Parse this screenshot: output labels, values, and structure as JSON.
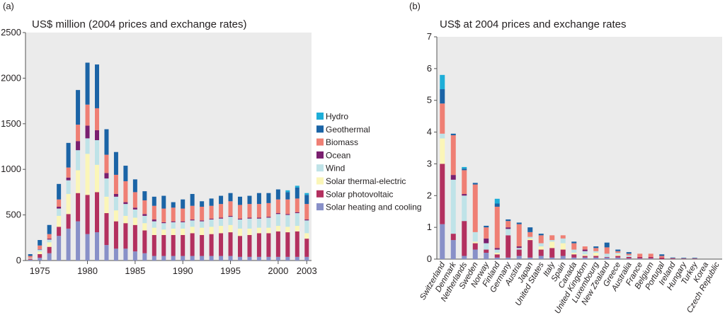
{
  "colors": {
    "hydro": "#1eaed8",
    "geothermal": "#1b64a6",
    "biomass": "#ef7f74",
    "ocean": "#7a1f6f",
    "wind": "#bfe3e8",
    "solar_thermal": "#fbf6b8",
    "solar_pv": "#b3305f",
    "solar_heating": "#8890c8",
    "plot_bg": "#ebebeb",
    "axis": "#555555"
  },
  "chart_data": [
    {
      "type": "bar",
      "stacked": true,
      "panel_label": "(a)",
      "title": "US$ million (2004 prices and exchange rates)",
      "xlabel": "",
      "ylabel": "",
      "ylim": [
        0,
        2500
      ],
      "yticks": [
        0,
        500,
        1000,
        1500,
        2000,
        2500
      ],
      "x_tick_labels": [
        "1975",
        "1980",
        "1985",
        "1990",
        "1995",
        "2000",
        "2003"
      ],
      "x_tick_positions": [
        1975,
        1980,
        1985,
        1990,
        1995,
        2000,
        2003
      ],
      "legend_position": "right",
      "categories": [
        1974,
        1975,
        1976,
        1977,
        1978,
        1979,
        1980,
        1981,
        1982,
        1983,
        1984,
        1985,
        1986,
        1987,
        1988,
        1989,
        1990,
        1991,
        1992,
        1993,
        1994,
        1995,
        1996,
        1997,
        1998,
        1999,
        2000,
        2001,
        2002,
        2003
      ],
      "series": [
        {
          "name": "Solar heating and cooling",
          "key": "solar_heating",
          "values": [
            10,
            30,
            80,
            270,
            350,
            430,
            290,
            310,
            170,
            130,
            130,
            100,
            80,
            50,
            50,
            50,
            50,
            50,
            50,
            50,
            50,
            50,
            40,
            40,
            40,
            40,
            40,
            40,
            40,
            40
          ]
        },
        {
          "name": "Solar photovoltaic",
          "key": "solar_pv",
          "values": [
            10,
            40,
            70,
            100,
            160,
            310,
            430,
            440,
            350,
            300,
            280,
            290,
            250,
            230,
            230,
            230,
            230,
            250,
            230,
            240,
            250,
            260,
            230,
            240,
            260,
            260,
            280,
            270,
            280,
            200
          ]
        },
        {
          "name": "Solar thermal-electric",
          "key": "solar_thermal",
          "values": [
            5,
            30,
            50,
            120,
            220,
            250,
            450,
            300,
            180,
            120,
            80,
            80,
            80,
            80,
            60,
            70,
            70,
            70,
            80,
            80,
            80,
            80,
            80,
            70,
            60,
            60,
            60,
            60,
            60,
            60
          ]
        },
        {
          "name": "Wind",
          "key": "wind",
          "values": [
            5,
            20,
            30,
            80,
            150,
            220,
            170,
            270,
            200,
            150,
            130,
            90,
            80,
            70,
            70,
            70,
            70,
            70,
            70,
            80,
            80,
            90,
            100,
            110,
            100,
            110,
            130,
            130,
            140,
            140
          ]
        },
        {
          "name": "Ocean",
          "key": "ocean",
          "values": [
            0,
            5,
            10,
            20,
            30,
            100,
            140,
            110,
            60,
            30,
            20,
            20,
            20,
            20,
            10,
            10,
            10,
            10,
            10,
            10,
            10,
            10,
            10,
            10,
            10,
            10,
            10,
            10,
            10,
            10
          ]
        },
        {
          "name": "Biomass",
          "key": "biomass",
          "values": [
            20,
            40,
            50,
            80,
            110,
            180,
            230,
            240,
            200,
            210,
            230,
            170,
            150,
            150,
            150,
            150,
            140,
            150,
            150,
            140,
            150,
            160,
            150,
            150,
            150,
            150,
            150,
            160,
            150,
            170
          ]
        },
        {
          "name": "Geothermal",
          "key": "geothermal",
          "values": [
            20,
            60,
            100,
            170,
            270,
            380,
            460,
            480,
            280,
            250,
            170,
            140,
            100,
            100,
            140,
            60,
            100,
            130,
            60,
            80,
            90,
            90,
            90,
            90,
            120,
            110,
            110,
            80,
            120,
            100
          ]
        },
        {
          "name": "Hydro",
          "key": "hydro",
          "values": [
            0,
            0,
            0,
            0,
            0,
            0,
            0,
            0,
            0,
            0,
            0,
            0,
            0,
            0,
            0,
            0,
            0,
            0,
            0,
            0,
            0,
            0,
            0,
            0,
            0,
            0,
            0,
            20,
            20,
            20
          ]
        }
      ]
    },
    {
      "type": "bar",
      "stacked": true,
      "panel_label": "(b)",
      "title": "US$ at 2004 prices and exchange rates",
      "xlabel": "",
      "ylabel": "",
      "ylim": [
        0,
        7
      ],
      "yticks": [
        0,
        1,
        2,
        3,
        4,
        5,
        6,
        7
      ],
      "categories": [
        "Switzerland",
        "Denmark",
        "Netherlands",
        "Sweden",
        "Norway",
        "Finland",
        "Germany",
        "Austria",
        "Japan",
        "United States",
        "Italy",
        "Spain",
        "Canada",
        "United Kingdom",
        "Luxembourg",
        "New Zealand",
        "Greece",
        "Australia",
        "France",
        "Belgium",
        "Portugal",
        "Ireland",
        "Hungary",
        "Turkey",
        "Korea",
        "Czech Republic"
      ],
      "series": [
        {
          "name": "Solar heating and cooling",
          "key": "solar_heating",
          "values": [
            1.1,
            0.6,
            0.1,
            0.3,
            0.2,
            0.05,
            0.05,
            0.1,
            0.05,
            0.1,
            0.05,
            0.1,
            0.05,
            0.05,
            0.05,
            0.05,
            0.05,
            0.02,
            0.02,
            0.02,
            0.0,
            0.0,
            0.0,
            0.0,
            0.0,
            0.0
          ]
        },
        {
          "name": "Solar photovoltaic",
          "key": "solar_pv",
          "values": [
            1.9,
            0.2,
            1.1,
            0.2,
            0.1,
            0.1,
            0.7,
            0.2,
            0.55,
            0.2,
            0.3,
            0.2,
            0.1,
            0.05,
            0.05,
            0.02,
            0.05,
            0.05,
            0.05,
            0.05,
            0.05,
            0.02,
            0.01,
            0.01,
            0.0,
            0.0
          ]
        },
        {
          "name": "Solar thermal-electric",
          "key": "solar_thermal",
          "values": [
            0.8,
            0.0,
            0.0,
            0.05,
            0.0,
            0.05,
            0.0,
            0.0,
            0.05,
            0.1,
            0.2,
            0.2,
            0.05,
            0.05,
            0.1,
            0.0,
            0.05,
            0.0,
            0.0,
            0.0,
            0.0,
            0.0,
            0.0,
            0.0,
            0.0,
            0.0
          ]
        },
        {
          "name": "Wind",
          "key": "wind",
          "values": [
            0.15,
            1.7,
            0.8,
            0.3,
            0.2,
            0.1,
            0.2,
            0.05,
            0.05,
            0.1,
            0.05,
            0.15,
            0.1,
            0.1,
            0.05,
            0.1,
            0.05,
            0.05,
            0.0,
            0.0,
            0.0,
            0.0,
            0.0,
            0.0,
            0.0,
            0.0
          ]
        },
        {
          "name": "Ocean",
          "key": "ocean",
          "values": [
            0.0,
            0.15,
            0.05,
            0.0,
            0.15,
            0.05,
            0.05,
            0.05,
            0.0,
            0.0,
            0.0,
            0.0,
            0.0,
            0.05,
            0.0,
            0.0,
            0.0,
            0.0,
            0.0,
            0.0,
            0.0,
            0.0,
            0.0,
            0.0,
            0.0,
            0.0
          ]
        },
        {
          "name": "Biomass",
          "key": "biomass",
          "values": [
            0.95,
            1.25,
            0.75,
            1.5,
            0.35,
            1.3,
            0.2,
            0.7,
            0.15,
            0.25,
            0.15,
            0.1,
            0.2,
            0.1,
            0.1,
            0.2,
            0.05,
            0.05,
            0.1,
            0.1,
            0.05,
            0.01,
            0.01,
            0.01,
            0.0,
            0.0
          ]
        },
        {
          "name": "Geothermal",
          "key": "geothermal",
          "values": [
            0.45,
            0.05,
            0.05,
            0.05,
            0.05,
            0.1,
            0.05,
            0.05,
            0.15,
            0.05,
            0.0,
            0.0,
            0.05,
            0.0,
            0.05,
            0.15,
            0.05,
            0.05,
            0.0,
            0.0,
            0.05,
            0.02,
            0.02,
            0.02,
            0.0,
            0.0
          ]
        },
        {
          "name": "Hydro",
          "key": "hydro",
          "values": [
            0.45,
            0.0,
            0.05,
            0.0,
            0.0,
            0.15,
            0.0,
            0.0,
            0.0,
            0.0,
            0.0,
            0.0,
            0.0,
            0.0,
            0.0,
            0.0,
            0.0,
            0.0,
            0.0,
            0.0,
            0.0,
            0.0,
            0.0,
            0.0,
            0.0,
            0.0
          ]
        }
      ]
    }
  ]
}
